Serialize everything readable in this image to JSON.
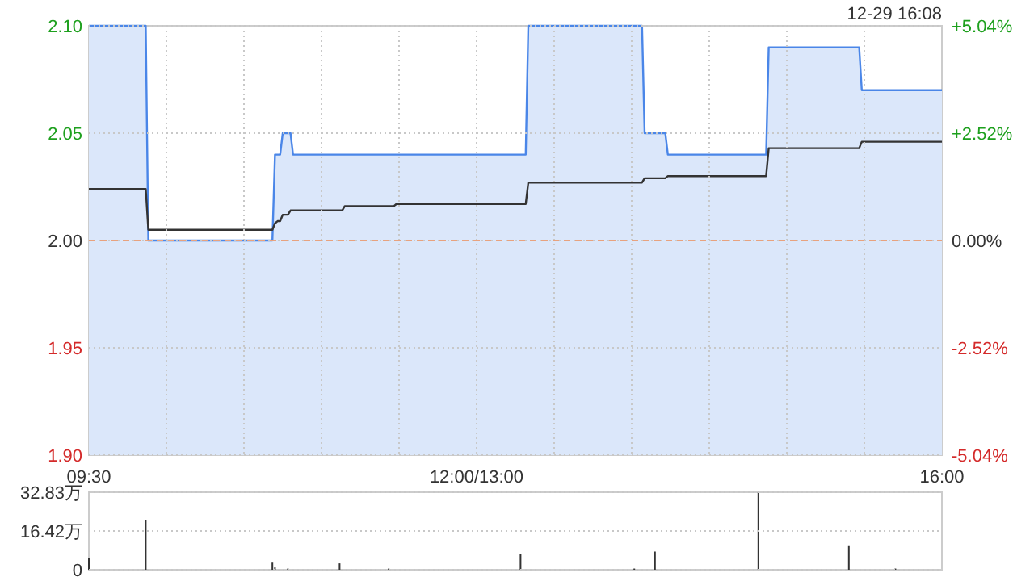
{
  "chart_data": [
    {
      "type": "line",
      "subtitle": "12-29 16:08",
      "categories": [
        null,
        null,
        null,
        null,
        null,
        null,
        null,
        null,
        null,
        null,
        null,
        null,
        null,
        null,
        null,
        null,
        null,
        null,
        null,
        null,
        null,
        null,
        null,
        null,
        null,
        null,
        null,
        null,
        null,
        null,
        null,
        null,
        null,
        null,
        null,
        null,
        null,
        null,
        null,
        null,
        null,
        null,
        null,
        null,
        null,
        null,
        null,
        null,
        null,
        null,
        null,
        null,
        null,
        null,
        null,
        null,
        null,
        null,
        null,
        null,
        null,
        null,
        null,
        null,
        null,
        null,
        null,
        null,
        null,
        null,
        null,
        null,
        null,
        null,
        null,
        null,
        null,
        null,
        null,
        null,
        null,
        null,
        null,
        null,
        null,
        null,
        null,
        null,
        null,
        null,
        null,
        null,
        null,
        null,
        null,
        null,
        null,
        null,
        null,
        null,
        null,
        null,
        null,
        null,
        null,
        null,
        null,
        null,
        null,
        null,
        null,
        null,
        null,
        null,
        null,
        null,
        null,
        null,
        null,
        null,
        null,
        null,
        null,
        null,
        null,
        null,
        null,
        null,
        null,
        null,
        null,
        null,
        null,
        null,
        null,
        null,
        null,
        null,
        null,
        null,
        null,
        null,
        null,
        null,
        null,
        null,
        null,
        null,
        null,
        null,
        null,
        null,
        null,
        null,
        null,
        null,
        null,
        null,
        null,
        null,
        null,
        null,
        null,
        null,
        null,
        null,
        null,
        null,
        null,
        null,
        null,
        null,
        null,
        null,
        null,
        null,
        null,
        null,
        null,
        null,
        null,
        null,
        null,
        null,
        null,
        null,
        null,
        null,
        null,
        null,
        null,
        null,
        null,
        null,
        null,
        null,
        null,
        null,
        null,
        null,
        null,
        null,
        null,
        null,
        null,
        null,
        null,
        null,
        null,
        null,
        null,
        null,
        null,
        null,
        null,
        null,
        null,
        null,
        null,
        null,
        null,
        null,
        null,
        null,
        null,
        null,
        null,
        null,
        null,
        null,
        null,
        null,
        null,
        null,
        null,
        null,
        null,
        null,
        null,
        null,
        null,
        null,
        null,
        null,
        null,
        null,
        null,
        null,
        null,
        null,
        null,
        null,
        null,
        null,
        null,
        null,
        null,
        null,
        null,
        null,
        null,
        null,
        null,
        null,
        null,
        null,
        null,
        null,
        null,
        null,
        null,
        null,
        null,
        null,
        null,
        null,
        null,
        null,
        null,
        null,
        null,
        null,
        null,
        null,
        null,
        null,
        null,
        null,
        null,
        null,
        null,
        null,
        null,
        null,
        null,
        null,
        null,
        null,
        null,
        null,
        null,
        null,
        null,
        null,
        null,
        null,
        null,
        null,
        null,
        null,
        null,
        null,
        null,
        null,
        null,
        null,
        null,
        null,
        null,
        null,
        null,
        null,
        null,
        null,
        null,
        null,
        null,
        null,
        null,
        null,
        null
      ],
      "ylim": [
        1.9,
        2.1
      ],
      "yticks": [
        {
          "value": 1.9,
          "label": "1.90"
        },
        {
          "value": 1.95,
          "label": "1.95"
        },
        {
          "value": 2.0,
          "label": "2.00"
        },
        {
          "value": 2.05,
          "label": "2.05"
        },
        {
          "value": 2.1,
          "label": "2.10"
        }
      ],
      "y2lim": [
        -5.04,
        5.04
      ],
      "y2ticks": [
        {
          "value": -5.04,
          "label": "-5.04%"
        },
        {
          "value": -2.52,
          "label": "-2.52%"
        },
        {
          "value": 0,
          "label": "0.00%"
        },
        {
          "value": 2.52,
          "label": "+2.52%"
        },
        {
          "value": 5.04,
          "label": "+5.04%"
        }
      ],
      "tick_labels": "y",
      "grid": true,
      "ref_lines": [
        {
          "axis": "y",
          "value": 2.0,
          "color": "#e8a27e",
          "line_style": "dashed"
        }
      ],
      "series": [
        {
          "type": "area",
          "color": "#4a86e8",
          "values": [
            2.1,
            2.1,
            2.1,
            2.1,
            2.1,
            2.1,
            2.1,
            2.1,
            2.1,
            2.1,
            2.1,
            2.1,
            2.1,
            2.1,
            2.1,
            2.1,
            2.1,
            2.1,
            2.1,
            2.1,
            2.1,
            2.1,
            2.1,
            2,
            2,
            2,
            2,
            2,
            2,
            2,
            2,
            2,
            2,
            2,
            2,
            2,
            2,
            2,
            2,
            2,
            2,
            2,
            2,
            2,
            2,
            2,
            2,
            2,
            2,
            2,
            2,
            2,
            2,
            2,
            2,
            2,
            2,
            2,
            2,
            2,
            2,
            2,
            2,
            2,
            2,
            2,
            2,
            2,
            2,
            2,
            2,
            2,
            2.04,
            2.04,
            2.04,
            2.05,
            2.05,
            2.05,
            2.05,
            2.04,
            2.04,
            2.04,
            2.04,
            2.04,
            2.04,
            2.04,
            2.04,
            2.04,
            2.04,
            2.04,
            2.04,
            2.04,
            2.04,
            2.04,
            2.04,
            2.04,
            2.04,
            2.04,
            2.04,
            2.04,
            2.04,
            2.04,
            2.04,
            2.04,
            2.04,
            2.04,
            2.04,
            2.04,
            2.04,
            2.04,
            2.04,
            2.04,
            2.04,
            2.04,
            2.04,
            2.04,
            2.04,
            2.04,
            2.04,
            2.04,
            2.04,
            2.04,
            2.04,
            2.04,
            2.04,
            2.04,
            2.04,
            2.04,
            2.04,
            2.04,
            2.04,
            2.04,
            2.04,
            2.04,
            2.04,
            2.04,
            2.04,
            2.04,
            2.04,
            2.04,
            2.04,
            2.04,
            2.04,
            2.04,
            2.04,
            2.04,
            2.04,
            2.04,
            2.04,
            2.04,
            2.04,
            2.04,
            2.04,
            2.04,
            2.04,
            2.04,
            2.04,
            2.04,
            2.04,
            2.04,
            2.04,
            2.04,
            2.04,
            2.04,
            2.04,
            2.04,
            2.04,
            2.04,
            2.04,
            2.04,
            2.1,
            2.1,
            2.1,
            2.1,
            2.1,
            2.1,
            2.1,
            2.1,
            2.1,
            2.1,
            2.1,
            2.1,
            2.1,
            2.1,
            2.1,
            2.1,
            2.1,
            2.1,
            2.1,
            2.1,
            2.1,
            2.1,
            2.1,
            2.1,
            2.1,
            2.1,
            2.1,
            2.1,
            2.1,
            2.1,
            2.1,
            2.1,
            2.1,
            2.1,
            2.1,
            2.1,
            2.1,
            2.1,
            2.1,
            2.1,
            2.1,
            2.1,
            2.1,
            2.1,
            2.1,
            2.05,
            2.05,
            2.05,
            2.05,
            2.05,
            2.05,
            2.05,
            2.05,
            2.05,
            2.04,
            2.04,
            2.04,
            2.04,
            2.04,
            2.04,
            2.04,
            2.04,
            2.04,
            2.04,
            2.04,
            2.04,
            2.04,
            2.04,
            2.04,
            2.04,
            2.04,
            2.04,
            2.04,
            2.04,
            2.04,
            2.04,
            2.04,
            2.04,
            2.04,
            2.04,
            2.04,
            2.04,
            2.04,
            2.04,
            2.04,
            2.04,
            2.04,
            2.04,
            2.04,
            2.04,
            2.04,
            2.04,
            2.04,
            2.09,
            2.09,
            2.09,
            2.09,
            2.09,
            2.09,
            2.09,
            2.09,
            2.09,
            2.09,
            2.09,
            2.09,
            2.09,
            2.09,
            2.09,
            2.09,
            2.09,
            2.09,
            2.09,
            2.09,
            2.09,
            2.09,
            2.09,
            2.09,
            2.09,
            2.09,
            2.09,
            2.09,
            2.09,
            2.09,
            2.09,
            2.09,
            2.09,
            2.09,
            2.09,
            2.09,
            2.07,
            2.07,
            2.07,
            2.07,
            2.07,
            2.07,
            2.07,
            2.07,
            2.07,
            2.07,
            2.07,
            2.07,
            2.07,
            2.07,
            2.07,
            2.07,
            2.07,
            2.07,
            2.07,
            2.07,
            2.07,
            2.07,
            2.07,
            2.07,
            2.07,
            2.07,
            2.07,
            2.07,
            2.07,
            2.07,
            2.07,
            2.07
          ]
        },
        {
          "color": "#333333",
          "values": [
            2.024,
            2.024,
            2.024,
            2.024,
            2.024,
            2.024,
            2.024,
            2.024,
            2.024,
            2.024,
            2.024,
            2.024,
            2.024,
            2.024,
            2.024,
            2.024,
            2.024,
            2.024,
            2.024,
            2.024,
            2.024,
            2.024,
            2.024,
            2.005,
            2.005,
            2.005,
            2.005,
            2.005,
            2.005,
            2.005,
            2.005,
            2.005,
            2.005,
            2.005,
            2.005,
            2.005,
            2.005,
            2.005,
            2.005,
            2.005,
            2.005,
            2.005,
            2.005,
            2.005,
            2.005,
            2.005,
            2.005,
            2.005,
            2.005,
            2.005,
            2.005,
            2.005,
            2.005,
            2.005,
            2.005,
            2.005,
            2.005,
            2.005,
            2.005,
            2.005,
            2.005,
            2.005,
            2.005,
            2.005,
            2.005,
            2.005,
            2.005,
            2.005,
            2.005,
            2.005,
            2.005,
            2.005,
            2.008,
            2.009,
            2.009,
            2.012,
            2.012,
            2.012,
            2.014,
            2.014,
            2.014,
            2.014,
            2.014,
            2.014,
            2.014,
            2.014,
            2.014,
            2.014,
            2.014,
            2.014,
            2.014,
            2.014,
            2.014,
            2.014,
            2.014,
            2.014,
            2.014,
            2.014,
            2.014,
            2.016,
            2.016,
            2.016,
            2.016,
            2.016,
            2.016,
            2.016,
            2.016,
            2.016,
            2.016,
            2.016,
            2.016,
            2.016,
            2.016,
            2.016,
            2.016,
            2.016,
            2.016,
            2.016,
            2.016,
            2.017,
            2.017,
            2.017,
            2.017,
            2.017,
            2.017,
            2.017,
            2.017,
            2.017,
            2.017,
            2.017,
            2.017,
            2.017,
            2.017,
            2.017,
            2.017,
            2.017,
            2.017,
            2.017,
            2.017,
            2.017,
            2.017,
            2.017,
            2.017,
            2.017,
            2.017,
            2.017,
            2.017,
            2.017,
            2.017,
            2.017,
            2.017,
            2.017,
            2.017,
            2.017,
            2.017,
            2.017,
            2.017,
            2.017,
            2.017,
            2.017,
            2.017,
            2.017,
            2.017,
            2.017,
            2.017,
            2.017,
            2.017,
            2.017,
            2.017,
            2.017,
            2.027,
            2.027,
            2.027,
            2.027,
            2.027,
            2.027,
            2.027,
            2.027,
            2.027,
            2.027,
            2.027,
            2.027,
            2.027,
            2.027,
            2.027,
            2.027,
            2.027,
            2.027,
            2.027,
            2.027,
            2.027,
            2.027,
            2.027,
            2.027,
            2.027,
            2.027,
            2.027,
            2.027,
            2.027,
            2.027,
            2.027,
            2.027,
            2.027,
            2.027,
            2.027,
            2.027,
            2.027,
            2.027,
            2.027,
            2.027,
            2.027,
            2.027,
            2.027,
            2.027,
            2.027,
            2.029,
            2.029,
            2.029,
            2.029,
            2.029,
            2.029,
            2.029,
            2.029,
            2.029,
            2.03,
            2.03,
            2.03,
            2.03,
            2.03,
            2.03,
            2.03,
            2.03,
            2.03,
            2.03,
            2.03,
            2.03,
            2.03,
            2.03,
            2.03,
            2.03,
            2.03,
            2.03,
            2.03,
            2.03,
            2.03,
            2.03,
            2.03,
            2.03,
            2.03,
            2.03,
            2.03,
            2.03,
            2.03,
            2.03,
            2.03,
            2.03,
            2.03,
            2.03,
            2.03,
            2.03,
            2.03,
            2.03,
            2.03,
            2.043,
            2.043,
            2.043,
            2.043,
            2.043,
            2.043,
            2.043,
            2.043,
            2.043,
            2.043,
            2.043,
            2.043,
            2.043,
            2.043,
            2.043,
            2.043,
            2.043,
            2.043,
            2.043,
            2.043,
            2.043,
            2.043,
            2.043,
            2.043,
            2.043,
            2.043,
            2.043,
            2.043,
            2.043,
            2.043,
            2.043,
            2.043,
            2.043,
            2.043,
            2.043,
            2.043,
            2.046,
            2.046,
            2.046,
            2.046,
            2.046,
            2.046,
            2.046,
            2.046,
            2.046,
            2.046,
            2.046,
            2.046,
            2.046,
            2.046,
            2.046,
            2.046,
            2.046,
            2.046,
            2.046,
            2.046,
            2.046,
            2.046,
            2.046,
            2.046,
            2.046,
            2.046,
            2.046,
            2.046,
            2.046,
            2.046,
            2.046,
            2.046
          ]
        }
      ]
    },
    {
      "type": "bar",
      "categories": [
        "09:30",
        null,
        null,
        null,
        null,
        null,
        null,
        null,
        null,
        null,
        null,
        null,
        null,
        null,
        null,
        null,
        null,
        null,
        null,
        null,
        null,
        null,
        null,
        null,
        null,
        null,
        null,
        null,
        null,
        null,
        null,
        null,
        null,
        null,
        null,
        null,
        null,
        null,
        null,
        null,
        null,
        null,
        null,
        null,
        null,
        null,
        null,
        null,
        null,
        null,
        null,
        null,
        null,
        null,
        null,
        null,
        null,
        null,
        null,
        null,
        null,
        null,
        null,
        null,
        null,
        null,
        null,
        null,
        null,
        null,
        null,
        null,
        null,
        null,
        null,
        null,
        null,
        null,
        null,
        null,
        null,
        null,
        null,
        null,
        null,
        null,
        null,
        null,
        null,
        null,
        null,
        null,
        null,
        null,
        null,
        null,
        null,
        null,
        null,
        null,
        null,
        null,
        null,
        null,
        null,
        null,
        null,
        null,
        null,
        null,
        null,
        null,
        null,
        null,
        null,
        null,
        null,
        null,
        null,
        null,
        null,
        null,
        null,
        null,
        null,
        null,
        null,
        null,
        null,
        null,
        null,
        null,
        null,
        null,
        null,
        null,
        null,
        null,
        null,
        null,
        null,
        null,
        null,
        null,
        null,
        null,
        null,
        null,
        null,
        null,
        "12:00/13:00",
        null,
        null,
        null,
        null,
        null,
        null,
        null,
        null,
        null,
        null,
        null,
        null,
        null,
        null,
        null,
        null,
        null,
        null,
        null,
        null,
        null,
        null,
        null,
        null,
        null,
        null,
        null,
        null,
        null,
        null,
        null,
        null,
        null,
        null,
        null,
        null,
        null,
        null,
        null,
        null,
        null,
        null,
        null,
        null,
        null,
        null,
        null,
        null,
        null,
        null,
        null,
        null,
        null,
        null,
        null,
        null,
        null,
        null,
        null,
        null,
        null,
        null,
        null,
        null,
        null,
        null,
        null,
        null,
        null,
        null,
        null,
        null,
        null,
        null,
        null,
        null,
        null,
        null,
        null,
        null,
        null,
        null,
        null,
        null,
        null,
        null,
        null,
        null,
        null,
        null,
        null,
        null,
        null,
        null,
        null,
        null,
        null,
        null,
        null,
        null,
        null,
        null,
        null,
        null,
        null,
        null,
        null,
        null,
        null,
        null,
        null,
        null,
        null,
        null,
        null,
        null,
        null,
        null,
        null,
        null,
        null,
        null,
        null,
        null,
        null,
        null,
        null,
        null,
        null,
        null,
        null,
        null,
        null,
        null,
        null,
        null,
        null,
        null,
        null,
        null,
        null,
        null,
        null,
        null,
        null,
        null,
        null,
        null,
        null,
        null,
        null,
        null,
        null,
        null,
        null,
        null,
        null,
        null,
        null,
        null,
        null,
        null,
        null,
        null,
        null,
        null,
        null,
        null,
        null,
        null,
        null,
        null,
        null,
        null,
        null,
        null,
        null,
        null,
        null,
        "16:00"
      ],
      "ylim": [
        0,
        32.83
      ],
      "yticks": [
        0,
        {
          "value": 16.42,
          "label": "16.42万"
        },
        {
          "value": 32.83,
          "label": "32.83万"
        }
      ],
      "grid": "y",
      "series": [
        {
          "color": "#333333",
          "values": [
            5,
            0,
            0,
            0,
            0,
            0,
            0,
            0,
            0,
            0,
            0,
            0,
            0,
            0,
            0,
            0,
            0,
            0,
            0,
            0,
            0,
            0,
            21,
            0,
            0,
            0,
            0,
            0,
            0,
            0,
            0,
            0,
            0,
            0,
            0,
            0,
            0,
            0,
            0,
            0,
            0,
            0,
            0,
            0,
            0,
            0,
            0,
            0,
            0,
            0,
            0,
            0,
            0,
            0,
            0,
            0,
            0,
            0,
            0,
            0,
            0,
            0,
            0,
            0,
            0,
            0,
            0,
            0,
            0,
            0,
            0,
            3,
            1,
            0,
            0,
            0,
            0,
            0.5,
            0,
            0,
            0,
            0,
            0,
            0,
            0,
            0,
            0,
            0,
            0,
            0,
            0,
            0,
            0,
            0,
            0,
            0,
            0,
            2.7,
            0,
            0,
            0,
            0,
            0,
            0,
            0,
            0,
            0,
            0,
            0,
            0,
            0,
            0,
            0,
            0,
            0,
            0,
            0.5,
            0,
            0,
            0,
            0,
            0,
            0,
            0,
            0,
            0,
            0,
            0,
            0,
            0,
            0,
            0,
            0,
            0,
            0,
            0,
            0,
            0,
            0,
            0,
            0,
            0,
            0,
            0,
            0,
            0,
            0,
            0,
            0,
            0,
            0,
            0,
            0,
            0,
            0,
            0,
            0,
            0,
            0,
            0,
            0,
            0,
            0,
            0,
            0,
            0,
            0,
            6.6,
            0,
            0,
            0,
            0,
            0,
            0,
            0,
            0,
            0,
            0,
            0,
            0,
            0,
            0,
            0,
            0,
            0,
            0,
            0,
            0,
            0,
            0,
            0,
            0,
            0,
            0,
            0,
            0,
            0,
            0,
            0,
            0,
            0,
            0,
            0,
            0,
            0,
            0,
            0,
            0,
            0,
            0,
            0,
            0.5,
            0,
            0,
            0,
            0,
            0,
            0,
            0,
            7.7,
            0,
            0,
            0,
            0,
            0,
            0,
            0,
            0,
            0,
            0,
            0,
            0,
            0,
            0,
            0,
            0,
            0,
            0,
            0,
            0,
            0,
            0,
            0,
            0,
            0,
            0,
            0,
            0,
            0,
            0,
            0,
            0,
            0,
            0,
            0,
            0,
            0,
            0,
            0,
            32.8,
            0,
            0,
            0,
            0,
            0,
            0,
            0,
            0,
            0,
            0,
            0,
            0,
            0,
            0,
            0,
            0,
            0,
            0,
            0,
            0,
            0,
            0,
            0,
            0,
            0,
            0,
            0,
            0,
            0,
            0,
            0,
            0,
            0,
            0,
            10,
            0,
            0,
            0,
            0,
            0,
            0,
            0,
            0,
            0,
            0,
            0,
            0,
            0,
            0,
            0,
            0,
            0,
            0.5,
            0,
            0,
            0,
            0,
            0,
            0,
            0,
            0,
            0,
            0,
            0,
            0,
            0,
            0,
            0,
            0,
            0,
            0
          ]
        }
      ]
    }
  ]
}
